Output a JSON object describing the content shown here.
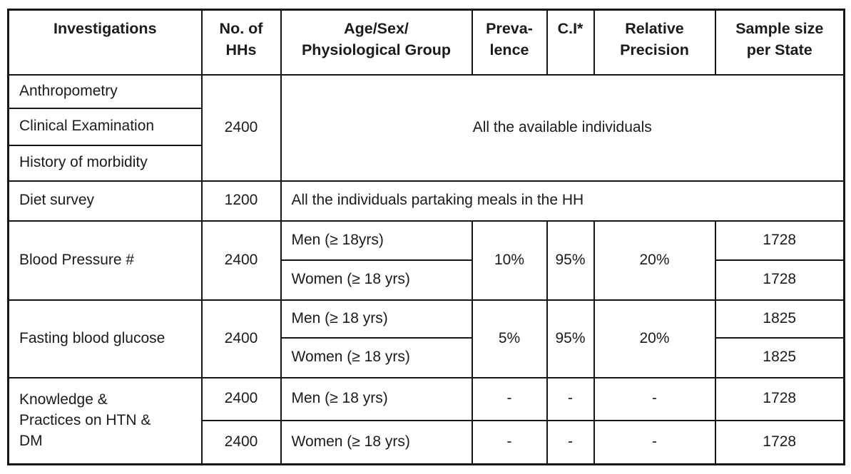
{
  "colors": {
    "background": "#ffffff",
    "border": "#161616",
    "text": "#1b1b1b"
  },
  "table": {
    "header": {
      "investigations": "Investigations",
      "no_of_hhs": "No. of\nHHs",
      "age_sex_group": "Age/Sex/\nPhysiological Group",
      "prevalence": "Preva-\nlence",
      "ci": "C.I*",
      "relative_precision": "Relative\nPrecision",
      "sample_size": "Sample size\nper State"
    },
    "rows": {
      "anthropometry": {
        "investigation": "Anthropometry"
      },
      "clinical_examination": {
        "investigation": "Clinical Examination"
      },
      "history_of_morbidity": {
        "investigation": "History of morbidity"
      },
      "available_group": {
        "no_of_hhs": "2400",
        "note": "All the available individuals"
      },
      "diet_survey": {
        "investigation": "Diet survey",
        "no_of_hhs": "1200",
        "note": "All the individuals partaking meals in the HH"
      },
      "blood_pressure": {
        "investigation": "Blood Pressure #",
        "no_of_hhs": "2400",
        "men_group": "Men (≥ 18yrs)",
        "women_group": "Women (≥ 18 yrs)",
        "prevalence": "10%",
        "ci": "95%",
        "relative_precision": "20%",
        "men_sample": "1728",
        "women_sample": "1728"
      },
      "fasting_blood_glucose": {
        "investigation": "Fasting blood glucose",
        "no_of_hhs": "2400",
        "men_group": "Men (≥ 18 yrs)",
        "women_group": "Women (≥ 18 yrs)",
        "prevalence": "5%",
        "ci": "95%",
        "relative_precision": "20%",
        "men_sample": "1825",
        "women_sample": "1825"
      },
      "knowledge_practices": {
        "investigation": "Knowledge &\nPractices on HTN &\nDM",
        "men_no_of_hhs": "2400",
        "women_no_of_hhs": "2400",
        "men_group": "Men (≥ 18 yrs)",
        "women_group": "Women (≥ 18 yrs)",
        "men_prevalence": "-",
        "men_ci": "-",
        "men_relative_precision": "-",
        "men_sample": "1728",
        "women_prevalence": "-",
        "women_ci": "-",
        "women_relative_precision": "-",
        "women_sample": "1728"
      }
    }
  }
}
